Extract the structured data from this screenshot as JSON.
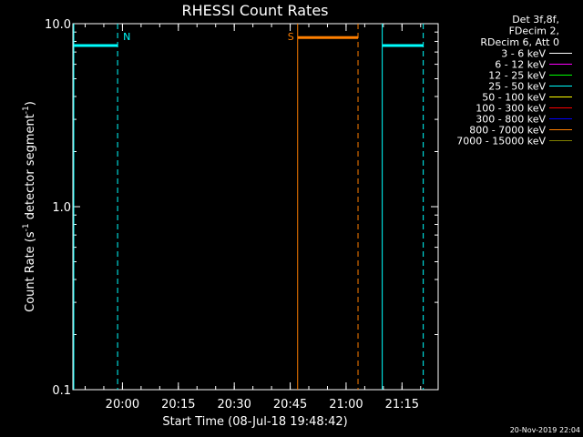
{
  "chart_data": {
    "type": "line",
    "title": "RHESSI Count Rates",
    "xlabel": "Start Time (08-Jul-18 19:48:42)",
    "ylabel_main": "Count Rate (s",
    "ylabel_sup1": "-1",
    "ylabel_mid": " detector segment",
    "ylabel_sup2": "-1",
    "ylabel_end": ")",
    "y_scale": "log",
    "ylim": [
      0.1,
      10.0
    ],
    "y_ticks": [
      {
        "value": 0.1,
        "label": "0.1"
      },
      {
        "value": 1.0,
        "label": "1.0"
      },
      {
        "value": 10.0,
        "label": "10.0"
      }
    ],
    "x_range_min": [
      -2,
      96
    ],
    "x_ticks": [
      {
        "value": 11.3,
        "label": "20:00"
      },
      {
        "value": 26.3,
        "label": "20:15"
      },
      {
        "value": 41.3,
        "label": "20:30"
      },
      {
        "value": 56.3,
        "label": "20:45"
      },
      {
        "value": 71.3,
        "label": "21:00"
      },
      {
        "value": 86.3,
        "label": "21:15"
      }
    ],
    "series": [
      {
        "name": "25 - 50 keV",
        "color": "#00ffff",
        "segments": [
          {
            "x": [
              -2,
              10.0
            ],
            "y": [
              7.6,
              7.6
            ]
          },
          {
            "x": [
              81.0,
              92.0
            ],
            "y": [
              7.6,
              7.6
            ]
          }
        ]
      },
      {
        "name": "800 - 7000 keV",
        "color": "#ff7f00",
        "segments": [
          {
            "x": [
              58.3,
              74.5
            ],
            "y": [
              8.4,
              8.4
            ]
          }
        ]
      }
    ],
    "markers": [
      {
        "x": -2.0,
        "style": "solid",
        "color": "#00ffff"
      },
      {
        "x": 10.0,
        "style": "dashed",
        "color": "#00ffff",
        "label": "N"
      },
      {
        "x": 58.3,
        "style": "solid",
        "color": "#ff7f00",
        "label": "S",
        "label_side": "left"
      },
      {
        "x": 74.5,
        "style": "dashed",
        "color": "#ff7f00"
      },
      {
        "x": 81.0,
        "style": "solid",
        "color": "#00ffff"
      },
      {
        "x": 92.0,
        "style": "dashed",
        "color": "#00ffff"
      }
    ],
    "legend_header": [
      "Det 3f,8f,",
      "FDecim 2,",
      "RDecim 6, Att 0"
    ],
    "legend": [
      {
        "label": "3 - 6 keV",
        "color": "#ffffff"
      },
      {
        "label": "6 - 12 keV",
        "color": "#ff00ff"
      },
      {
        "label": "12 - 25 keV",
        "color": "#00ff00"
      },
      {
        "label": "25 - 50 keV",
        "color": "#00ffff"
      },
      {
        "label": "50 - 100 keV",
        "color": "#ffff00"
      },
      {
        "label": "100 - 300 keV",
        "color": "#ff0000"
      },
      {
        "label": "300 - 800 keV",
        "color": "#0000ff"
      },
      {
        "label": "800 - 7000 keV",
        "color": "#ff7f00"
      },
      {
        "label": "7000 - 15000 keV",
        "color": "#7f7f00"
      }
    ],
    "legend_placement": "top-right outside plot",
    "timestamp": "20-Nov-2019 22:04",
    "grid": false
  }
}
